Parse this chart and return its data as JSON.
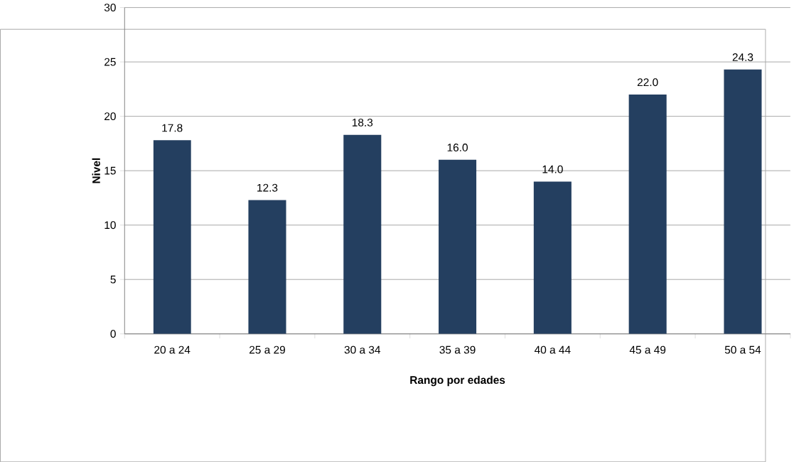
{
  "chart_data": {
    "type": "bar",
    "xlabel": "Rango por edades",
    "ylabel": "Nivel",
    "categories": [
      "20 a 24",
      "25 a 29",
      "30 a 34",
      "35 a 39",
      "40 a 44",
      "45 a 49",
      "50 a 54"
    ],
    "values": [
      17.8,
      12.3,
      18.3,
      16.0,
      14.0,
      22.0,
      24.3
    ],
    "value_labels": [
      "17.8",
      "12.3",
      "18.3",
      "16.0",
      "14.0",
      "22.0",
      "24.3"
    ],
    "color": "#243f60",
    "ylim": [
      0,
      30
    ],
    "yticks": [
      0,
      5,
      10,
      15,
      20,
      25,
      30
    ],
    "grid": "y"
  }
}
